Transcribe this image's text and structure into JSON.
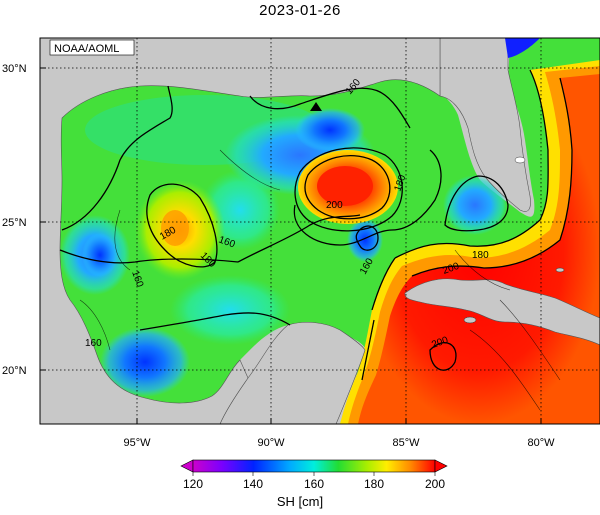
{
  "title": "2023-01-26",
  "credit": "NOAA/AOML",
  "lat_labels": [
    "30°N",
    "25°N",
    "20°N"
  ],
  "lon_labels": [
    "95°W",
    "90°W",
    "85°W",
    "80°W"
  ],
  "contour_labels": [
    "160",
    "160",
    "160",
    "160",
    "160",
    "180",
    "180",
    "180",
    "180",
    "200",
    "200",
    "200"
  ],
  "colorbar": {
    "ticks": [
      "120",
      "140",
      "160",
      "180",
      "200"
    ],
    "label": "SH [cm]",
    "colors": [
      "#cc00cc",
      "#6a00ff",
      "#0000ff",
      "#00aaff",
      "#00ffdd",
      "#22dd22",
      "#aaee00",
      "#ffee00",
      "#ff8800",
      "#ff0000"
    ]
  }
}
